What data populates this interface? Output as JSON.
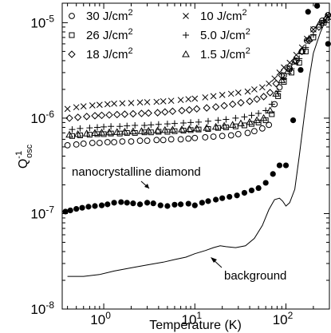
{
  "chart_data": {
    "type": "scatter",
    "xlabel": "Temperature (K)",
    "ylabel_main": "Q",
    "ylabel_sup": "-1",
    "ylabel_sub": "osc",
    "xscale": "log",
    "yscale": "log",
    "xlim": [
      0.35,
      300
    ],
    "ylim": [
      1e-08,
      1.6e-05
    ],
    "x_ticks": [
      {
        "value": 1,
        "mantissa": "10",
        "exp": "0"
      },
      {
        "value": 10,
        "mantissa": "10",
        "exp": "1"
      },
      {
        "value": 100,
        "mantissa": "10",
        "exp": "2"
      }
    ],
    "y_ticks": [
      {
        "value": 1e-08,
        "mantissa": "10",
        "exp": "-8"
      },
      {
        "value": 1e-07,
        "mantissa": "10",
        "exp": "-7"
      },
      {
        "value": 1e-06,
        "mantissa": "10",
        "exp": "-6"
      },
      {
        "value": 1e-05,
        "mantissa": "10",
        "exp": "-5"
      }
    ],
    "legend_placement": "top-left",
    "legend_unit": "J/cm",
    "legend_unit_exp": "2",
    "series": [
      {
        "name": "30",
        "marker": "circle",
        "x": [
          0.4,
          0.5,
          0.6,
          0.75,
          0.9,
          1.1,
          1.3,
          1.6,
          2,
          2.5,
          3,
          3.8,
          4.5,
          5.5,
          7,
          8.5,
          10,
          13,
          16,
          20,
          25,
          30,
          38,
          45,
          55,
          65,
          75,
          85,
          95,
          110,
          130,
          150,
          170,
          200,
          250,
          290
        ],
        "y": [
          5.2e-07,
          5.3e-07,
          5.4e-07,
          5.5e-07,
          5.5e-07,
          5.6e-07,
          5.6e-07,
          5.7e-07,
          5.7e-07,
          5.8e-07,
          5.8e-07,
          5.9e-07,
          5.9e-07,
          6e-07,
          6e-07,
          6.1e-07,
          6.2e-07,
          6.3e-07,
          6.4e-07,
          6.5e-07,
          6.6e-07,
          6.8e-07,
          7e-07,
          7.3e-07,
          7.8e-07,
          8.5e-07,
          1.4e-06,
          2.1e-06,
          2.8e-06,
          3.3e-06,
          4e-06,
          5e-06,
          6.5e-06,
          8.5e-06,
          1.05e-05,
          1.2e-05
        ]
      },
      {
        "name": "10",
        "marker": "x",
        "x": [
          0.4,
          0.5,
          0.6,
          0.75,
          0.9,
          1.1,
          1.3,
          1.6,
          2,
          2.5,
          3,
          3.8,
          4.5,
          5.5,
          7,
          8.5,
          10,
          13,
          16,
          20,
          25,
          30,
          38,
          45,
          55,
          65,
          75,
          85,
          95,
          110,
          130,
          150,
          170,
          200,
          250,
          290
        ],
        "y": [
          1.25e-06,
          1.3e-06,
          1.33e-06,
          1.36e-06,
          1.38e-06,
          1.4e-06,
          1.42e-06,
          1.43e-06,
          1.44e-06,
          1.46e-06,
          1.47e-06,
          1.48e-06,
          1.5e-06,
          1.52e-06,
          1.55e-06,
          1.58e-06,
          1.6e-06,
          1.65e-06,
          1.7e-06,
          1.75e-06,
          1.8e-06,
          1.85e-06,
          1.9e-06,
          2e-06,
          2.1e-06,
          2.3e-06,
          2.6e-06,
          3e-06,
          3.4e-06,
          3.8e-06,
          4.6e-06,
          5.5e-06,
          6.8e-06,
          8.5e-06,
          1e-05,
          1.15e-05
        ]
      },
      {
        "name": "26",
        "marker": "square",
        "x": [
          0.45,
          0.55,
          0.7,
          0.85,
          1,
          1.2,
          1.5,
          1.8,
          2.2,
          2.8,
          3.3,
          4,
          5,
          6,
          7.5,
          9,
          11,
          14,
          18,
          22,
          28,
          35,
          42,
          50,
          60,
          70,
          82,
          95,
          115,
          140,
          165,
          200,
          260
        ],
        "y": [
          6.5e-07,
          6.6e-07,
          6.7e-07,
          6.8e-07,
          6.8e-07,
          6.9e-07,
          6.9e-07,
          7e-07,
          7e-07,
          7.1e-07,
          7.1e-07,
          7.2e-07,
          7.2e-07,
          7.3e-07,
          7.4e-07,
          7.5e-07,
          7.6e-07,
          7.7e-07,
          7.9e-07,
          8e-07,
          8.2e-07,
          8.4e-07,
          8.7e-07,
          9e-07,
          9.5e-07,
          1.1e-06,
          1.7e-06,
          2.4e-06,
          3e-06,
          3.8e-06,
          5e-06,
          7e-06,
          1e-05
        ]
      },
      {
        "name": "5.0",
        "marker": "plus",
        "x": [
          0.45,
          0.55,
          0.7,
          0.85,
          1,
          1.2,
          1.5,
          1.8,
          2.2,
          2.8,
          3.3,
          4,
          5,
          6,
          7.5,
          9,
          11,
          14,
          18,
          22,
          28,
          35,
          42,
          50,
          60,
          70,
          82,
          95,
          115,
          140,
          165,
          200,
          260
        ],
        "y": [
          7.6e-07,
          7.8e-07,
          7.9e-07,
          8e-07,
          8.1e-07,
          8.2e-07,
          8.2e-07,
          8.3e-07,
          8.4e-07,
          8.4e-07,
          8.5e-07,
          8.6e-07,
          8.7e-07,
          8.8e-07,
          8.9e-07,
          9e-07,
          9.1e-07,
          9.3e-07,
          9.5e-07,
          9.7e-07,
          1e-06,
          1.03e-06,
          1.07e-06,
          1.12e-06,
          1.2e-06,
          1.4e-06,
          1.9e-06,
          2.6e-06,
          3.3e-06,
          4.2e-06,
          5.5e-06,
          7.5e-06,
          1.05e-05
        ]
      },
      {
        "name": "18",
        "marker": "diamond",
        "x": [
          0.42,
          0.52,
          0.65,
          0.8,
          0.95,
          1.15,
          1.4,
          1.7,
          2.1,
          2.6,
          3.1,
          3.9,
          4.7,
          5.7,
          7.2,
          8.7,
          10.5,
          13.5,
          17,
          21,
          26,
          32,
          40,
          48,
          57,
          67,
          78,
          90,
          105,
          125,
          150,
          180,
          230,
          280
        ],
        "y": [
          1e-06,
          1.02e-06,
          1.04e-06,
          1.06e-06,
          1.07e-06,
          1.08e-06,
          1.09e-06,
          1.1e-06,
          1.11e-06,
          1.12e-06,
          1.13e-06,
          1.14e-06,
          1.16e-06,
          1.18e-06,
          1.2e-06,
          1.22e-06,
          1.25e-06,
          1.28e-06,
          1.31e-06,
          1.35e-06,
          1.4e-06,
          1.45e-06,
          1.5e-06,
          1.58e-06,
          1.68e-06,
          1.85e-06,
          2.3e-06,
          2.8e-06,
          3.3e-06,
          4e-06,
          5e-06,
          6.5e-06,
          9e-06,
          1.1e-05
        ]
      },
      {
        "name": "1.5",
        "marker": "triangle",
        "x": [
          0.42,
          0.52,
          0.65,
          0.8,
          0.95,
          1.15,
          1.4,
          1.7,
          2.1,
          2.6,
          3.1,
          3.9,
          4.7,
          5.7,
          7.2,
          8.7,
          10.5,
          13.5,
          17,
          21,
          26,
          32,
          40,
          48,
          57,
          67,
          78,
          90,
          105,
          125,
          150,
          180,
          230,
          280
        ],
        "y": [
          6.7e-07,
          6.8e-07,
          6.9e-07,
          7e-07,
          7.05e-07,
          7.1e-07,
          7.15e-07,
          7.2e-07,
          7.25e-07,
          7.3e-07,
          7.35e-07,
          7.4e-07,
          7.5e-07,
          7.55e-07,
          7.6e-07,
          7.7e-07,
          7.8e-07,
          7.9e-07,
          8.1e-07,
          8.3e-07,
          8.5e-07,
          8.8e-07,
          9.1e-07,
          9.5e-07,
          1e-06,
          1.2e-06,
          1.8e-06,
          2.5e-06,
          3.1e-06,
          3.9e-06,
          5e-06,
          6.8e-06,
          9.5e-06,
          1.15e-05
        ]
      },
      {
        "name": "nanocrystalline diamond",
        "marker": "filled-circle",
        "x": [
          0.38,
          0.43,
          0.5,
          0.58,
          0.68,
          0.8,
          0.95,
          1.1,
          1.3,
          1.55,
          1.8,
          2.1,
          2.5,
          3,
          3.5,
          4.2,
          5,
          6,
          7,
          8.5,
          10,
          12,
          14,
          17,
          20,
          24,
          29,
          35,
          42,
          50,
          60,
          72,
          85,
          100,
          120,
          145,
          175,
          220,
          290
        ],
        "y": [
          1.05e-07,
          1.08e-07,
          1.12e-07,
          1.15e-07,
          1.18e-07,
          1.2e-07,
          1.22e-07,
          1.25e-07,
          1.3e-07,
          1.32e-07,
          1.3e-07,
          1.28e-07,
          1.25e-07,
          1.3e-07,
          1.28e-07,
          1.22e-07,
          1.2e-07,
          1.24e-07,
          1.25e-07,
          1.27e-07,
          1.22e-07,
          1.3e-07,
          1.35e-07,
          1.4e-07,
          1.45e-07,
          1.5e-07,
          1.55e-07,
          1.65e-07,
          1.75e-07,
          1.85e-07,
          2.1e-07,
          2.6e-07,
          3.2e-07,
          3.2e-07,
          9.5e-07,
          3.2e-06,
          1.3e-05,
          1.5e-05,
          6e-06
        ]
      },
      {
        "name": "background",
        "marker": "line",
        "x": [
          0.4,
          0.6,
          0.9,
          1.3,
          2,
          3,
          4.5,
          6,
          8,
          10,
          13,
          16,
          19,
          22,
          28,
          36,
          45,
          55,
          65,
          75,
          85,
          92,
          100,
          110,
          125,
          140,
          160,
          180,
          200,
          240,
          300
        ],
        "y": [
          2.2e-08,
          2.2e-08,
          2.3e-08,
          2.5e-08,
          2.7e-08,
          2.9e-08,
          3.1e-08,
          3.3e-08,
          3.5e-08,
          3.8e-08,
          4.1e-08,
          4.4e-08,
          4.6e-08,
          4.5e-08,
          4.4e-08,
          4.6e-08,
          5.5e-08,
          7.5e-08,
          1.1e-07,
          1.4e-07,
          1.45e-07,
          1.35e-07,
          1.2e-07,
          1.3e-07,
          1.8e-07,
          4e-07,
          1.1e-06,
          2.6e-06,
          4.8e-06,
          8e-06,
          1.3e-05
        ]
      }
    ],
    "annotations": [
      {
        "text": "nanocrystalline diamond",
        "target_series": "nanocrystalline diamond"
      },
      {
        "text": "background",
        "target_series": "background"
      }
    ]
  }
}
